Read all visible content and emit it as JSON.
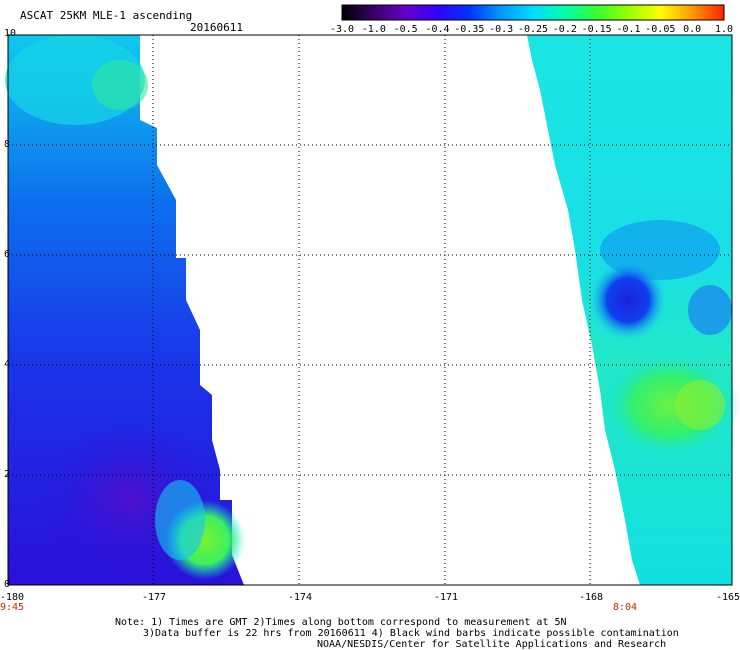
{
  "header": {
    "title": "ASCAT 25KM MLE-1 ascending",
    "date": "20160611"
  },
  "colorbar": {
    "labels": [
      "-3.0",
      "-1.0",
      "-0.5",
      "-0.4",
      "-0.35",
      "-0.3",
      "-0.25",
      "-0.2",
      "-0.15",
      "-0.1",
      "-0.05",
      "0.0",
      "1.0"
    ],
    "colors": [
      "#000000",
      "#3a0066",
      "#6600cc",
      "#3300ff",
      "#0033ff",
      "#0099ff",
      "#00ddff",
      "#00ffaa",
      "#33ff33",
      "#99ff00",
      "#ffff00",
      "#ff9900",
      "#ff2200"
    ]
  },
  "axes": {
    "x_ticks": [
      "-180",
      "-177",
      "-174",
      "-171",
      "-168",
      "-165"
    ],
    "y_ticks": [
      "0",
      "2",
      "4",
      "6",
      "8",
      "10"
    ]
  },
  "times": {
    "left": "9:45",
    "right": "8:04"
  },
  "notes": {
    "line1": "Note: 1) Times are GMT 2)Times along bottom correspond to measurement at 5N",
    "line2": "3)Data buffer is 22 hrs from 20160611 4) Black wind barbs indicate possible contamination",
    "line3": "NOAA/NESDIS/Center for Satellite Applications and Research"
  }
}
